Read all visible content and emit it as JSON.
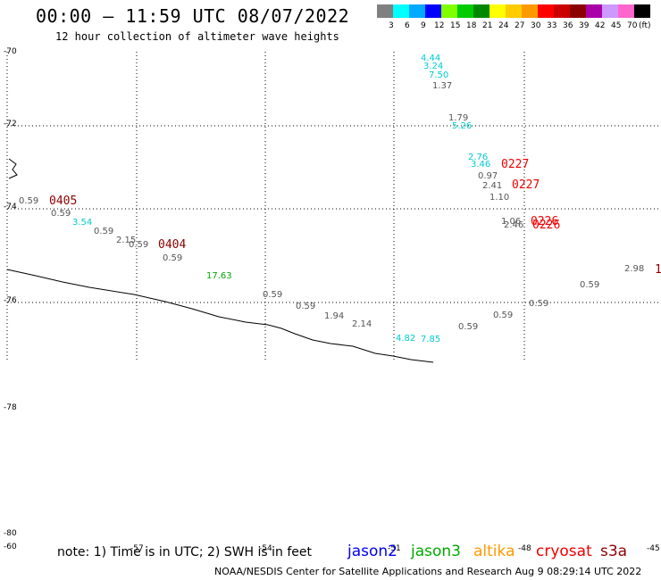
{
  "header": {
    "title": "00:00 – 11:59 UTC 08/07/2022",
    "subtitle": "12 hour collection of altimeter wave heights"
  },
  "legend": {
    "colors": [
      "#808080",
      "#00ffff",
      "#00aaff",
      "#0000ff",
      "#7fff00",
      "#00cc00",
      "#008800",
      "#ffff00",
      "#ffcc00",
      "#ff9900",
      "#ff0000",
      "#cc0000",
      "#8b0000",
      "#aa00aa",
      "#cc99ff",
      "#ff66cc",
      "#000000"
    ],
    "labels": [
      "3",
      "6",
      "9",
      "12",
      "15",
      "18",
      "21",
      "24",
      "27",
      "30",
      "33",
      "36",
      "39",
      "42",
      "45",
      "70",
      "(ft)"
    ]
  },
  "axes": {
    "lat_labels": [
      "-70",
      "-72",
      "-74",
      "-76",
      "-78",
      "-80",
      "-60"
    ],
    "lon_labels": [
      "-57",
      "-54",
      "-51",
      "-48",
      "-45"
    ]
  },
  "observations": [
    {
      "text": "4.44",
      "color": "#00cccc"
    },
    {
      "text": "3.24",
      "color": "#00cccc"
    },
    {
      "text": "7.50",
      "color": "#00cccc"
    },
    {
      "text": "1.37",
      "color": "#555555"
    },
    {
      "text": "1.79",
      "color": "#555555"
    },
    {
      "text": "5.26",
      "color": "#00cccc"
    },
    {
      "text": "2.76",
      "color": "#00cccc"
    },
    {
      "text": "3.46",
      "color": "#00cccc"
    },
    {
      "text": "0.97",
      "color": "#555555"
    },
    {
      "text": "2.41",
      "color": "#555555"
    },
    {
      "text": "1.10",
      "color": "#555555"
    },
    {
      "text": "1.06",
      "color": "#555555"
    },
    {
      "text": "2.46",
      "color": "#555555"
    },
    {
      "text": "0.59",
      "color": "#555555"
    },
    {
      "text": "0.59",
      "color": "#555555"
    },
    {
      "text": "3.54",
      "color": "#00cccc"
    },
    {
      "text": "0.59",
      "color": "#555555"
    },
    {
      "text": "2.15",
      "color": "#555555"
    },
    {
      "text": "0.59",
      "color": "#555555"
    },
    {
      "text": "0.59",
      "color": "#555555"
    },
    {
      "text": "17.63",
      "color": "#00aa00"
    },
    {
      "text": "0.59",
      "color": "#555555"
    },
    {
      "text": "0.59",
      "color": "#555555"
    },
    {
      "text": "1.94",
      "color": "#555555"
    },
    {
      "text": "2.14",
      "color": "#555555"
    },
    {
      "text": "4.82",
      "color": "#00cccc"
    },
    {
      "text": "7.85",
      "color": "#00cccc"
    },
    {
      "text": "0.59",
      "color": "#555555"
    },
    {
      "text": "0.59",
      "color": "#555555"
    },
    {
      "text": "0.59",
      "color": "#555555"
    },
    {
      "text": "0.59",
      "color": "#555555"
    },
    {
      "text": "2.98",
      "color": "#555555"
    }
  ],
  "passes": [
    {
      "text": "0405",
      "color": "#8b0000"
    },
    {
      "text": "0404",
      "color": "#8b0000"
    },
    {
      "text": "0227",
      "color": "#ee0000"
    },
    {
      "text": "0227",
      "color": "#ee0000"
    },
    {
      "text": "0226",
      "color": "#ee0000"
    },
    {
      "text": "0226",
      "color": "#ee0000"
    },
    {
      "text": "1",
      "color": "#8b0000"
    }
  ],
  "footer": {
    "note": "note: 1) Time is in UTC; 2) SWH is in feet",
    "satellites": [
      {
        "name": "jason2",
        "color": "#0000ee"
      },
      {
        "name": "jason3",
        "color": "#00aa00"
      },
      {
        "name": "altika",
        "color": "#ff9900"
      },
      {
        "name": "cryosat",
        "color": "#ee0000"
      },
      {
        "name": "s3a",
        "color": "#8b0000"
      }
    ],
    "credit": "NOAA/NESDIS Center for Satellite Applications and Research    Aug  9 08:29:14 UTC 2022"
  }
}
